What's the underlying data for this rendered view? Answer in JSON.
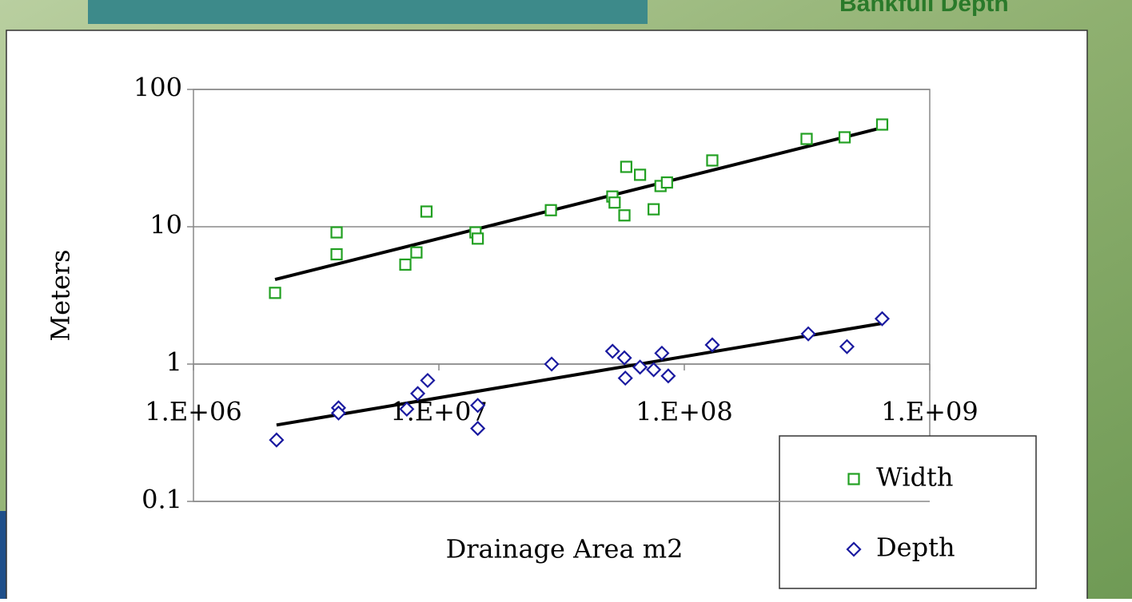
{
  "slide_title": "Bankfull Depth",
  "chart_data": {
    "type": "scatter",
    "x_label": "Drainage Area m2",
    "y_label": "Meters",
    "log_x": true,
    "log_y": true,
    "xlim": [
      1000000,
      1000000000
    ],
    "xticks": [
      {
        "value": 1000000,
        "label": "1.E+06"
      },
      {
        "value": 10000000,
        "label": "1.E+07"
      },
      {
        "value": 100000000,
        "label": "1.E+08"
      },
      {
        "value": 1000000000,
        "label": "1.E+09"
      }
    ],
    "ylim": [
      0.1,
      100
    ],
    "yticks": [
      0.1,
      1,
      10,
      100
    ],
    "x_axis_crosses": 1,
    "grid": true,
    "legend": "bottom-right",
    "series": [
      {
        "name": "Width",
        "color": "#22a022",
        "marker": "square",
        "x": [
          2150000,
          3830000,
          3830000,
          7300000,
          8100000,
          8900000,
          14100000,
          14400000,
          28600000,
          50900000,
          52000000,
          57000000,
          58000000,
          66000000,
          75000000,
          80000000,
          85000000,
          130000000,
          315000000,
          450000000,
          640000000
        ],
        "values": [
          3.3,
          9.1,
          6.3,
          5.3,
          6.5,
          12.9,
          9.1,
          8.2,
          13.2,
          16.6,
          15,
          12.1,
          27.3,
          23.9,
          13.4,
          19.8,
          21,
          30.4,
          43.6,
          44.8,
          55.5
        ],
        "trend": {
          "x": [
            2150000,
            640000000
          ],
          "values": [
            4.13,
            52.6
          ]
        }
      },
      {
        "name": "Depth",
        "color": "#1a1aa0",
        "marker": "diamond",
        "x": [
          2180000,
          3900000,
          3900000,
          7400000,
          8200000,
          9000000,
          14400000,
          14400000,
          28800000,
          51000000,
          57000000,
          57500000,
          66000000,
          75000000,
          81000000,
          86000000,
          130000000,
          320000000,
          460000000,
          640000000
        ],
        "values": [
          0.28,
          0.48,
          0.44,
          0.47,
          0.61,
          0.76,
          0.5,
          0.34,
          1.0,
          1.24,
          1.11,
          0.79,
          0.95,
          0.91,
          1.2,
          0.82,
          1.38,
          1.66,
          1.34,
          2.14
        ],
        "trend": {
          "x": [
            2180000,
            640000000
          ],
          "values": [
            0.36,
            1.98
          ]
        }
      }
    ]
  }
}
